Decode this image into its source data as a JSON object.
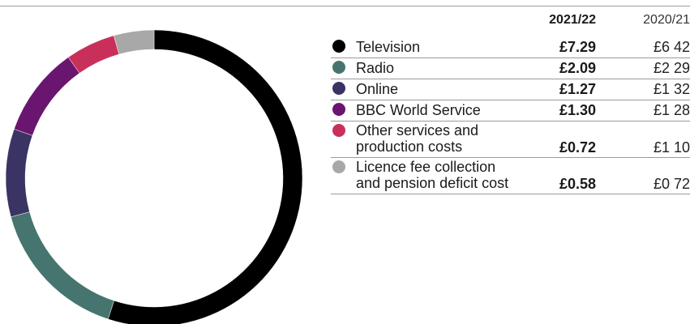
{
  "header": {
    "current_year": "2021/22",
    "previous_year": "2020/21"
  },
  "rows": [
    {
      "label": "Television",
      "current": "£7.29",
      "previous": "£6 42",
      "color": "#000000"
    },
    {
      "label": "Radio",
      "current": "£2.09",
      "previous": "£2 29",
      "color": "#46756f"
    },
    {
      "label": "Online",
      "current": "£1.27",
      "previous": "£1 32",
      "color": "#3a3464"
    },
    {
      "label": "BBC World Service",
      "current": "£1.30",
      "previous": "£1 28",
      "color": "#6a1570"
    },
    {
      "label": "Other services and\nproduction costs",
      "current": "£0.72",
      "previous": "£1 10",
      "color": "#c8305a"
    },
    {
      "label": "Licence fee collection\nand pension deficit cost",
      "current": "£0.58",
      "previous": "£0 72",
      "color": "#a8a8a8"
    }
  ],
  "chart_data": {
    "type": "pie",
    "style": "donut",
    "categories": [
      "Television",
      "Radio",
      "Online",
      "BBC World Service",
      "Other services and production costs",
      "Licence fee collection and pension deficit cost"
    ],
    "values": [
      7.29,
      2.09,
      1.27,
      1.3,
      0.72,
      0.58
    ],
    "colors": [
      "#000000",
      "#46756f",
      "#3a3464",
      "#6a1570",
      "#c8305a",
      "#a8a8a8"
    ],
    "start_angle": "top",
    "direction": "clockwise",
    "legend": "right"
  }
}
